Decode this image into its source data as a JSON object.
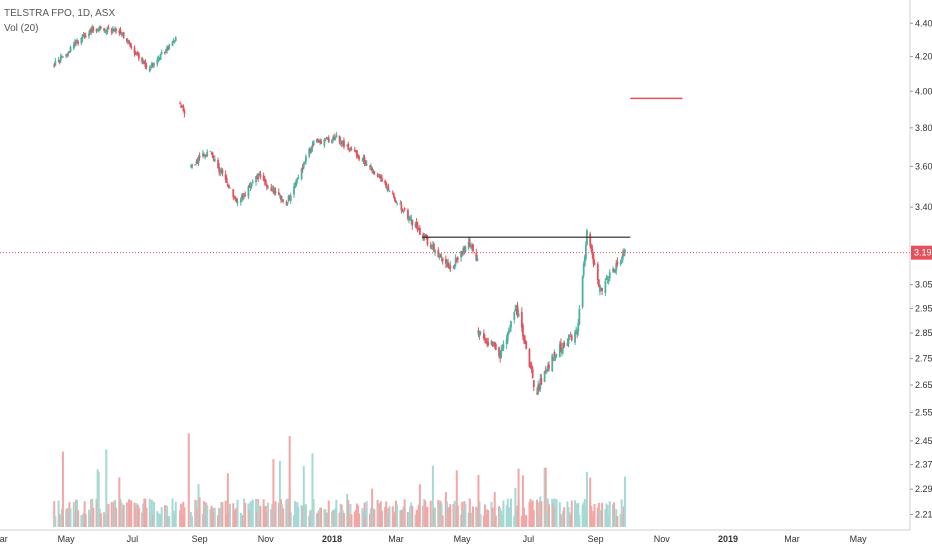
{
  "legend": {
    "symbol": "TELSTRA FPO, 1D, ASX",
    "volume": "Vol (20)"
  },
  "colors": {
    "up": "#4caf9f",
    "down": "#e2525c",
    "up_volume": "#a6d9d3",
    "down_volume": "#f2a6a6",
    "price_line": "#e2525c",
    "resistance_line": "#222222",
    "axis_text": "#333333",
    "grid": "#e6e6e6"
  },
  "chart_data": {
    "type": "candlestick",
    "grid": false,
    "legend_placement": "top-left",
    "y_axis_position": "right",
    "y_scale": "log",
    "ylim": [
      2.19,
      4.47
    ],
    "ytick_labels": [
      "4.40",
      "4.20",
      "4.00",
      "3.80",
      "3.60",
      "3.40",
      "3.19",
      "3.05",
      "2.95",
      "2.85",
      "2.75",
      "2.65",
      "2.55",
      "2.45",
      "2.37",
      "2.29",
      "2.21"
    ],
    "x_labels": [
      "Mar",
      "May",
      "Jul",
      "Sep",
      "Nov",
      "2018",
      "Mar",
      "May",
      "Jul",
      "Sep",
      "Nov",
      "2019",
      "Mar",
      "May"
    ],
    "x_label_bold": [
      "2018",
      "2019"
    ],
    "xlim": [
      "2017-03-01",
      "2019-06-15"
    ],
    "last_price": "3.19",
    "price_segments": [
      {
        "from": "2017-04-20",
        "to": "2017-05-25",
        "start": 4.15,
        "end": 4.37
      },
      {
        "from": "2017-05-25",
        "to": "2017-06-20",
        "start": 4.37,
        "end": 4.35
      },
      {
        "from": "2017-06-20",
        "to": "2017-07-15",
        "start": 4.35,
        "end": 4.12
      },
      {
        "from": "2017-07-15",
        "to": "2017-08-10",
        "start": 4.12,
        "end": 4.3
      },
      {
        "from": "2017-08-14",
        "to": "2017-08-20",
        "start": 3.93,
        "end": 3.86
      },
      {
        "from": "2017-08-24",
        "to": "2017-09-10",
        "start": 3.6,
        "end": 3.68
      },
      {
        "from": "2017-09-10",
        "to": "2017-10-05",
        "start": 3.68,
        "end": 3.42
      },
      {
        "from": "2017-10-05",
        "to": "2017-10-25",
        "start": 3.42,
        "end": 3.55
      },
      {
        "from": "2017-10-25",
        "to": "2017-11-20",
        "start": 3.55,
        "end": 3.42
      },
      {
        "from": "2017-11-20",
        "to": "2017-12-15",
        "start": 3.42,
        "end": 3.72
      },
      {
        "from": "2017-12-15",
        "to": "2018-01-05",
        "start": 3.72,
        "end": 3.75
      },
      {
        "from": "2018-01-05",
        "to": "2018-02-01",
        "start": 3.75,
        "end": 3.62
      },
      {
        "from": "2018-02-01",
        "to": "2018-02-25",
        "start": 3.62,
        "end": 3.46
      },
      {
        "from": "2018-02-25",
        "to": "2018-03-25",
        "start": 3.46,
        "end": 3.27
      },
      {
        "from": "2018-03-25",
        "to": "2018-04-20",
        "start": 3.27,
        "end": 3.12
      },
      {
        "from": "2018-04-20",
        "to": "2018-05-08",
        "start": 3.12,
        "end": 3.24
      },
      {
        "from": "2018-05-08",
        "to": "2018-05-15",
        "start": 3.24,
        "end": 3.15
      },
      {
        "from": "2018-05-16",
        "to": "2018-06-05",
        "start": 2.86,
        "end": 2.76
      },
      {
        "from": "2018-06-05",
        "to": "2018-06-20",
        "start": 2.76,
        "end": 2.95
      },
      {
        "from": "2018-06-20",
        "to": "2018-07-08",
        "start": 2.95,
        "end": 2.62
      },
      {
        "from": "2018-07-08",
        "to": "2018-07-25",
        "start": 2.62,
        "end": 2.77
      },
      {
        "from": "2018-07-25",
        "to": "2018-08-15",
        "start": 2.77,
        "end": 2.85
      },
      {
        "from": "2018-08-15",
        "to": "2018-08-24",
        "start": 2.85,
        "end": 3.28
      },
      {
        "from": "2018-08-24",
        "to": "2018-09-05",
        "start": 3.28,
        "end": 3.02
      },
      {
        "from": "2018-09-05",
        "to": "2018-09-28",
        "start": 3.02,
        "end": 3.19
      }
    ],
    "volume_scale_max": 100,
    "resistance_line": {
      "from": "2018-03-25",
      "to": "2018-10-03",
      "value": 3.26
    },
    "target_line": {
      "from": "2018-10-03",
      "to": "2018-11-20",
      "value": 3.96
    }
  }
}
